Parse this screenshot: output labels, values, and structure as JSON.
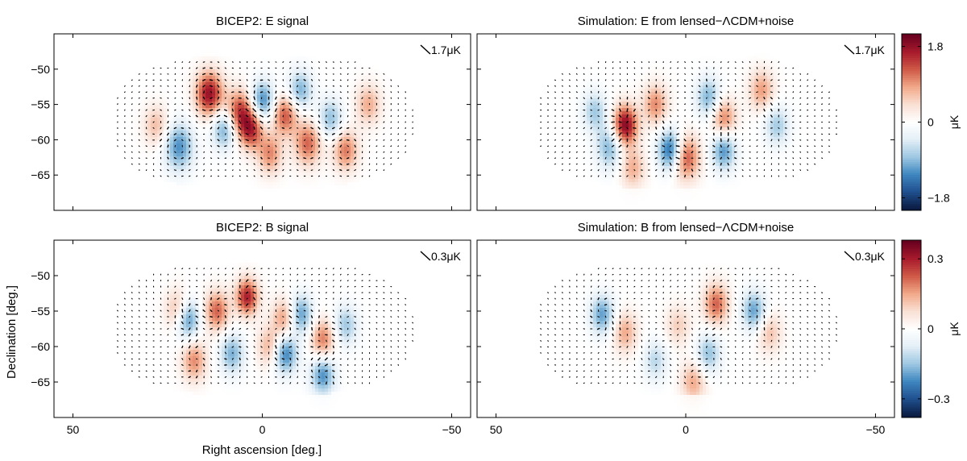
{
  "figure": {
    "colors": {
      "colormap": [
        "#0a1a40",
        "#1f4f8e",
        "#3f87c0",
        "#9ec8e2",
        "#e4eff7",
        "#ffffff",
        "#f9e0d4",
        "#f2a989",
        "#cf5a47",
        "#a81a2c",
        "#67001f"
      ],
      "vector_color": "#000000",
      "frame_color": "#000000"
    }
  },
  "chart_data": [
    {
      "type": "heatmap",
      "title": "BICEP2: E signal",
      "xlabel": "",
      "ylabel": "",
      "xlim": [
        55,
        -55
      ],
      "ylim": [
        -70,
        -45
      ],
      "xticks": [
        50,
        0,
        -50
      ],
      "yticks": [
        -50,
        -55,
        -60,
        -65
      ],
      "scale_bar_label": "1.7μK",
      "colorbar": null,
      "features": [
        {
          "ra": 14,
          "dec": -53.5,
          "amp": 1.8,
          "width": 2.2
        },
        {
          "ra": 6,
          "dec": -56,
          "amp": 1.4,
          "width": 2.2
        },
        {
          "ra": 3,
          "dec": -58.5,
          "amp": 1.5,
          "width": 2.0
        },
        {
          "ra": -6,
          "dec": -56.5,
          "amp": 1.3,
          "width": 2.0
        },
        {
          "ra": -12,
          "dec": -60.5,
          "amp": 1.2,
          "width": 2.2
        },
        {
          "ra": -22,
          "dec": -61.5,
          "amp": 1.1,
          "width": 2.0
        },
        {
          "ra": -2,
          "dec": -62,
          "amp": 1.0,
          "width": 2.0
        },
        {
          "ra": 22,
          "dec": -61,
          "amp": -1.2,
          "width": 2.4
        },
        {
          "ra": 0,
          "dec": -54.5,
          "amp": -1.3,
          "width": 2.0
        },
        {
          "ra": -10,
          "dec": -53,
          "amp": -1.0,
          "width": 2.0
        },
        {
          "ra": 10,
          "dec": -58.5,
          "amp": -1.1,
          "width": 2.0
        },
        {
          "ra": -18,
          "dec": -57,
          "amp": -0.9,
          "width": 2.0
        },
        {
          "ra": -28,
          "dec": -55,
          "amp": 0.8,
          "width": 2.0
        },
        {
          "ra": 28,
          "dec": -58,
          "amp": 0.7,
          "width": 2.0
        }
      ]
    },
    {
      "type": "heatmap",
      "title": "Simulation: E from lensed−ΛCDM+noise",
      "xlabel": "",
      "ylabel": "",
      "xlim": [
        55,
        -55
      ],
      "ylim": [
        -70,
        -45
      ],
      "xticks": [
        50,
        0,
        -50
      ],
      "yticks": [
        -50,
        -55,
        -60,
        -65
      ],
      "scale_bar_label": "1.7μK",
      "colorbar": {
        "ticks": [
          1.8,
          0,
          -1.8
        ],
        "range": [
          -2.1,
          2.1
        ],
        "unit_label": "μK"
      },
      "features": [
        {
          "ra": 16,
          "dec": -58,
          "amp": 2.0,
          "width": 2.0
        },
        {
          "ra": 0,
          "dec": -62.5,
          "amp": 1.4,
          "width": 2.2
        },
        {
          "ra": 8,
          "dec": -55,
          "amp": 1.0,
          "width": 2.0
        },
        {
          "ra": -10,
          "dec": -57,
          "amp": 1.1,
          "width": 2.0
        },
        {
          "ra": -20,
          "dec": -53,
          "amp": 0.9,
          "width": 2.0
        },
        {
          "ra": 4,
          "dec": -61.5,
          "amp": -1.6,
          "width": 2.0
        },
        {
          "ra": -6,
          "dec": -54,
          "amp": -1.0,
          "width": 2.0
        },
        {
          "ra": -10,
          "dec": -61.5,
          "amp": -1.2,
          "width": 2.0
        },
        {
          "ra": 20,
          "dec": -61,
          "amp": -1.0,
          "width": 2.2
        },
        {
          "ra": 24,
          "dec": -56,
          "amp": -0.8,
          "width": 2.0
        },
        {
          "ra": -24,
          "dec": -58,
          "amp": -0.8,
          "width": 2.0
        },
        {
          "ra": 14,
          "dec": -64,
          "amp": 0.8,
          "width": 2.0
        }
      ]
    },
    {
      "type": "heatmap",
      "title": "BICEP2: B signal",
      "xlabel": "",
      "ylabel": "Declination [deg.]",
      "xlim": [
        55,
        -55
      ],
      "ylim": [
        -70,
        -45
      ],
      "xticks": [
        50,
        0,
        -50
      ],
      "yticks": [
        -50,
        -55,
        -60,
        -65
      ],
      "scale_bar_label": "0.3μK",
      "colorbar": null,
      "features": [
        {
          "ra": 4,
          "dec": -53,
          "amp": 0.3,
          "width": 1.8
        },
        {
          "ra": 12,
          "dec": -55,
          "amp": 0.22,
          "width": 2.0
        },
        {
          "ra": 22,
          "dec": -55,
          "amp": 0.2,
          "width": 2.0
        },
        {
          "ra": -6,
          "dec": -56,
          "amp": 0.18,
          "width": 2.0
        },
        {
          "ra": -16,
          "dec": -59,
          "amp": 0.2,
          "width": 2.0
        },
        {
          "ra": 18,
          "dec": -62,
          "amp": 0.18,
          "width": 2.0
        },
        {
          "ra": -2,
          "dec": -60,
          "amp": 0.15,
          "width": 2.0
        },
        {
          "ra": 20,
          "dec": -56,
          "amp": -0.28,
          "width": 2.0
        },
        {
          "ra": -10,
          "dec": -55.5,
          "amp": -0.22,
          "width": 2.0
        },
        {
          "ra": -6,
          "dec": -61,
          "amp": -0.25,
          "width": 2.0
        },
        {
          "ra": -16,
          "dec": -64,
          "amp": -0.22,
          "width": 2.0
        },
        {
          "ra": 8,
          "dec": -61,
          "amp": -0.18,
          "width": 2.0
        },
        {
          "ra": -22,
          "dec": -57,
          "amp": -0.15,
          "width": 2.0
        }
      ]
    },
    {
      "type": "heatmap",
      "title": "Simulation: B from lensed−ΛCDM+noise",
      "xlabel": "",
      "ylabel": "",
      "xlim": [
        55,
        -55
      ],
      "ylim": [
        -70,
        -45
      ],
      "xticks": [
        50,
        0,
        -50
      ],
      "yticks": [
        -50,
        -55,
        -60,
        -65
      ],
      "scale_bar_label": "0.3μK",
      "colorbar": {
        "ticks": [
          0.3,
          0,
          -0.3
        ],
        "range": [
          -0.38,
          0.38
        ],
        "unit_label": "μK"
      },
      "features": [
        {
          "ra": -8,
          "dec": -54,
          "amp": 0.22,
          "width": 2.0
        },
        {
          "ra": 16,
          "dec": -58,
          "amp": 0.15,
          "width": 2.0
        },
        {
          "ra": -2,
          "dec": -65,
          "amp": 0.15,
          "width": 2.0
        },
        {
          "ra": -22,
          "dec": -58,
          "amp": 0.12,
          "width": 2.0
        },
        {
          "ra": 22,
          "dec": -55.5,
          "amp": -0.2,
          "width": 2.0
        },
        {
          "ra": -18,
          "dec": -55,
          "amp": -0.2,
          "width": 2.0
        },
        {
          "ra": -6,
          "dec": -61,
          "amp": -0.16,
          "width": 2.0
        },
        {
          "ra": 8,
          "dec": -62,
          "amp": -0.12,
          "width": 2.0
        },
        {
          "ra": 2,
          "dec": -57,
          "amp": 0.1,
          "width": 2.0
        }
      ]
    }
  ],
  "shared_axes": {
    "xlabel": "Right ascension [deg.]",
    "ylabel": "Declination [deg.]"
  }
}
